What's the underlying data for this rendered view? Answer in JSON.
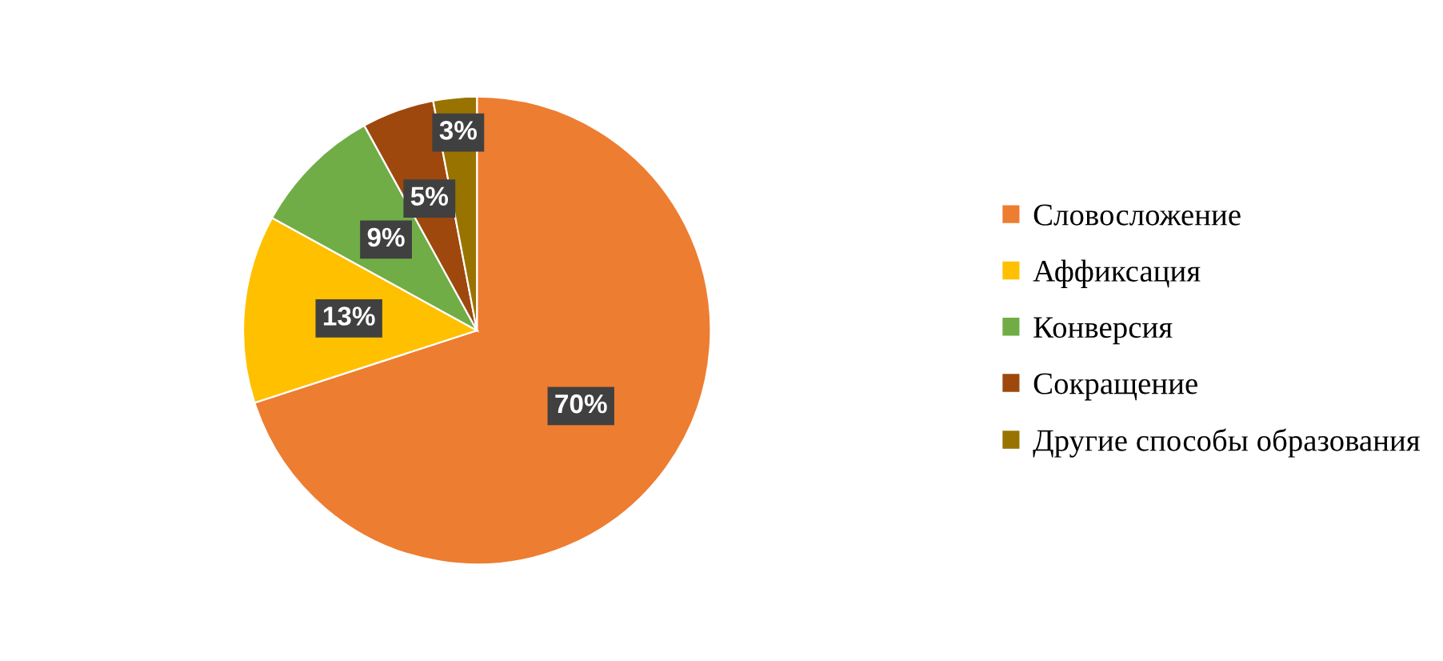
{
  "chart_data": {
    "type": "pie",
    "categories": [
      "Словосложение",
      "Аффиксация",
      "Конверсия",
      "Сокращение",
      "Другие способы образования"
    ],
    "values": [
      70,
      13,
      9,
      5,
      3
    ],
    "colors": [
      "#ed7d31",
      "#ffc000",
      "#70ad47",
      "#9e480e",
      "#997300"
    ],
    "value_labels": [
      "70%",
      "13%",
      "9%",
      "5%",
      "3%"
    ],
    "legend": "right"
  }
}
